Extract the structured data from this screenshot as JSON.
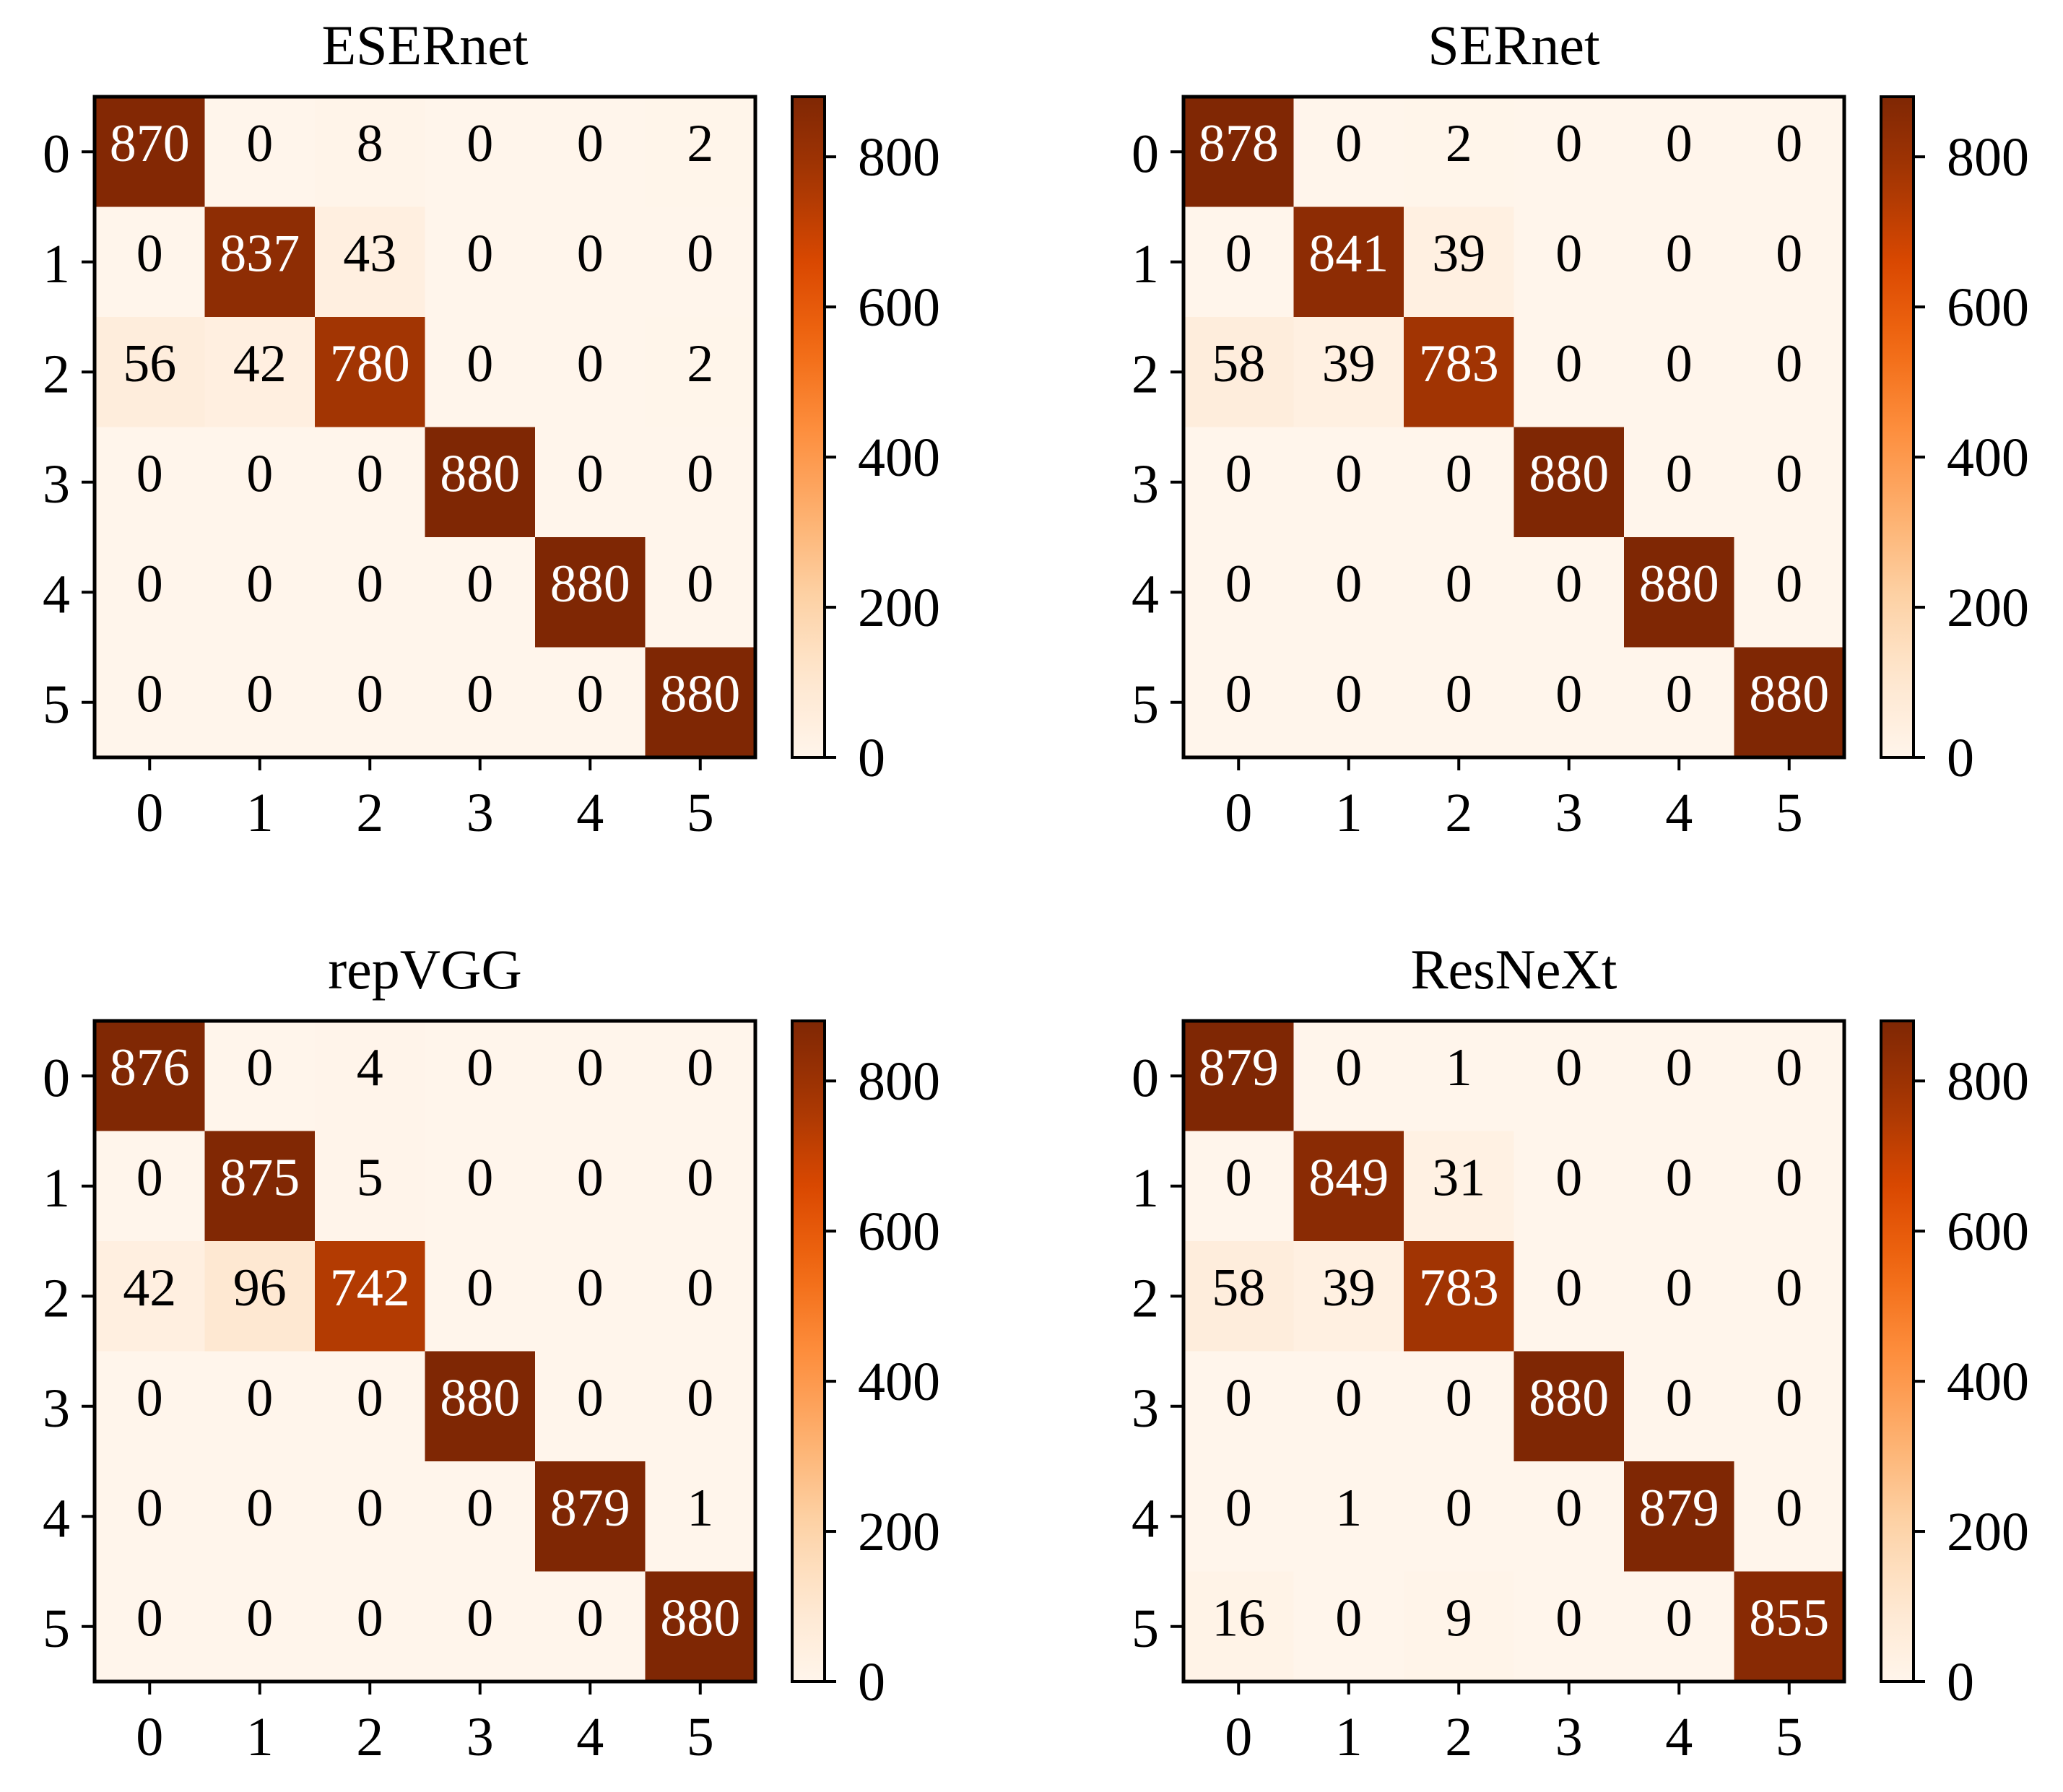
{
  "figure": {
    "colormap": [
      "#fff5eb",
      "#fee6ce",
      "#fdd0a2",
      "#fdae6b",
      "#fd8d3c",
      "#f16913",
      "#d94801",
      "#a63603",
      "#7f2704"
    ],
    "text_light": "#ffffff",
    "text_dark": "#000000",
    "frame_color": "#000000"
  },
  "chart_data": [
    {
      "type": "heatmap",
      "title": "ESERnet",
      "xlabel": "",
      "ylabel": "",
      "x_tick_labels": [
        "0",
        "1",
        "2",
        "3",
        "4",
        "5"
      ],
      "y_tick_labels": [
        "0",
        "1",
        "2",
        "3",
        "4",
        "5"
      ],
      "values": [
        [
          870,
          0,
          8,
          0,
          0,
          2
        ],
        [
          0,
          837,
          43,
          0,
          0,
          0
        ],
        [
          56,
          42,
          780,
          0,
          0,
          2
        ],
        [
          0,
          0,
          0,
          880,
          0,
          0
        ],
        [
          0,
          0,
          0,
          0,
          880,
          0
        ],
        [
          0,
          0,
          0,
          0,
          0,
          880
        ]
      ],
      "colorbar": {
        "range": [
          0,
          880
        ],
        "ticks": [
          0,
          200,
          400,
          600,
          800
        ],
        "tick_labels": [
          "0",
          "200",
          "400",
          "600",
          "800"
        ]
      }
    },
    {
      "type": "heatmap",
      "title": "SERnet",
      "xlabel": "",
      "ylabel": "",
      "x_tick_labels": [
        "0",
        "1",
        "2",
        "3",
        "4",
        "5"
      ],
      "y_tick_labels": [
        "0",
        "1",
        "2",
        "3",
        "4",
        "5"
      ],
      "values": [
        [
          878,
          0,
          2,
          0,
          0,
          0
        ],
        [
          0,
          841,
          39,
          0,
          0,
          0
        ],
        [
          58,
          39,
          783,
          0,
          0,
          0
        ],
        [
          0,
          0,
          0,
          880,
          0,
          0
        ],
        [
          0,
          0,
          0,
          0,
          880,
          0
        ],
        [
          0,
          0,
          0,
          0,
          0,
          880
        ]
      ],
      "colorbar": {
        "range": [
          0,
          880
        ],
        "ticks": [
          0,
          200,
          400,
          600,
          800
        ],
        "tick_labels": [
          "0",
          "200",
          "400",
          "600",
          "800"
        ]
      }
    },
    {
      "type": "heatmap",
      "title": "repVGG",
      "xlabel": "",
      "ylabel": "",
      "x_tick_labels": [
        "0",
        "1",
        "2",
        "3",
        "4",
        "5"
      ],
      "y_tick_labels": [
        "0",
        "1",
        "2",
        "3",
        "4",
        "5"
      ],
      "values": [
        [
          876,
          0,
          4,
          0,
          0,
          0
        ],
        [
          0,
          875,
          5,
          0,
          0,
          0
        ],
        [
          42,
          96,
          742,
          0,
          0,
          0
        ],
        [
          0,
          0,
          0,
          880,
          0,
          0
        ],
        [
          0,
          0,
          0,
          0,
          879,
          1
        ],
        [
          0,
          0,
          0,
          0,
          0,
          880
        ]
      ],
      "colorbar": {
        "range": [
          0,
          880
        ],
        "ticks": [
          0,
          200,
          400,
          600,
          800
        ],
        "tick_labels": [
          "0",
          "200",
          "400",
          "600",
          "800"
        ]
      }
    },
    {
      "type": "heatmap",
      "title": "ResNeXt",
      "xlabel": "",
      "ylabel": "",
      "x_tick_labels": [
        "0",
        "1",
        "2",
        "3",
        "4",
        "5"
      ],
      "y_tick_labels": [
        "0",
        "1",
        "2",
        "3",
        "4",
        "5"
      ],
      "values": [
        [
          879,
          0,
          1,
          0,
          0,
          0
        ],
        [
          0,
          849,
          31,
          0,
          0,
          0
        ],
        [
          58,
          39,
          783,
          0,
          0,
          0
        ],
        [
          0,
          0,
          0,
          880,
          0,
          0
        ],
        [
          0,
          1,
          0,
          0,
          879,
          0
        ],
        [
          16,
          0,
          9,
          0,
          0,
          855
        ]
      ],
      "colorbar": {
        "range": [
          0,
          880
        ],
        "ticks": [
          0,
          200,
          400,
          600,
          800
        ],
        "tick_labels": [
          "0",
          "200",
          "400",
          "600",
          "800"
        ]
      }
    }
  ]
}
